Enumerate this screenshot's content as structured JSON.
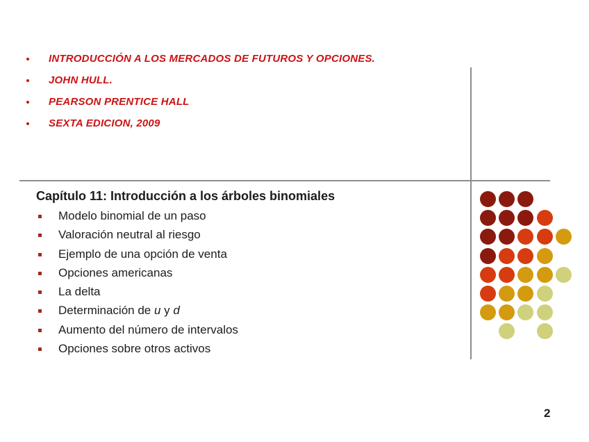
{
  "slide": {
    "page_number": "2"
  },
  "colors": {
    "background": "#ffffff",
    "reference_text": "#cb1313",
    "body_text": "#1c1c1c",
    "divider": "#8c8c8c",
    "list_bullet": "#9b2d1d"
  },
  "references": {
    "items": [
      {
        "label": "INTRODUCCIÓN A LOS MERCADOS DE FUTUROS Y OPCIONES."
      },
      {
        "label": "JOHN HULL."
      },
      {
        "label": "PEARSON PRENTICE HALL"
      },
      {
        "label": "SEXTA EDICION, 2009"
      }
    ]
  },
  "chapter": {
    "title": "Capítulo 11: Introducción a los árboles binomiales",
    "items": [
      {
        "label": "Modelo binomial de un paso"
      },
      {
        "label": "Valoración neutral al riesgo"
      },
      {
        "label": "Ejemplo de una opción de venta"
      },
      {
        "label": "Opciones americanas"
      },
      {
        "label": "La delta"
      },
      {
        "parts": {
          "pre": "Determinación de ",
          "var_u": "u",
          "mid": " y ",
          "var_d": "d"
        }
      },
      {
        "label": "Aumento del número de intervalos"
      },
      {
        "label": "Opciones sobre otros activos"
      }
    ]
  },
  "decoration": {
    "dot_palette": {
      "darkred": "#8b1a0e",
      "orangered": "#d63c10",
      "gold": "#d49b10",
      "palegreen": "#cfd17c"
    },
    "dot_grid": [
      [
        "darkred",
        "darkred",
        "darkred",
        null,
        null
      ],
      [
        "darkred",
        "darkred",
        "darkred",
        "orangered",
        null
      ],
      [
        "darkred",
        "darkred",
        "orangered",
        "orangered",
        "gold"
      ],
      [
        "darkred",
        "orangered",
        "orangered",
        "gold",
        null
      ],
      [
        "orangered",
        "orangered",
        "gold",
        "gold",
        "palegreen"
      ],
      [
        "orangered",
        "gold",
        "gold",
        "palegreen",
        null
      ],
      [
        "gold",
        "gold",
        "palegreen",
        "palegreen",
        null
      ],
      [
        null,
        "palegreen",
        null,
        "palegreen",
        null
      ]
    ]
  }
}
